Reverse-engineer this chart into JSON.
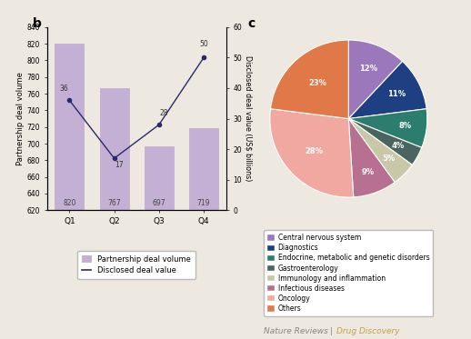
{
  "bar_quarters": [
    "Q1",
    "Q2",
    "Q3",
    "Q4"
  ],
  "bar_volumes": [
    820,
    767,
    697,
    719
  ],
  "line_values": [
    36,
    17,
    28,
    50
  ],
  "bar_color": "#c4b0d5",
  "bar_edgecolor": "#b8a0c8",
  "line_color": "#2a2a6a",
  "ylim_left": [
    620,
    840
  ],
  "ylim_right": [
    0,
    60
  ],
  "yticks_left": [
    620,
    640,
    660,
    680,
    700,
    720,
    740,
    760,
    780,
    800,
    820,
    840
  ],
  "yticks_right": [
    0,
    10,
    20,
    30,
    40,
    50,
    60
  ],
  "ylabel_left": "Partnership deal volume",
  "ylabel_right": "Disclosed deal value (US$ billions)",
  "legend_bar": "Partnership deal volume",
  "legend_line": "Disclosed deal value",
  "panel_b_label": "b",
  "panel_c_label": "c",
  "pie_labels": [
    "12%",
    "11%",
    "8%",
    "4%",
    "5%",
    "9%",
    "28%",
    "23%"
  ],
  "pie_values": [
    12,
    11,
    8,
    4,
    5,
    9,
    28,
    23
  ],
  "pie_colors": [
    "#9b78bb",
    "#1e3f82",
    "#2d7d6e",
    "#4a6560",
    "#c8c8a8",
    "#b87090",
    "#f0a8a0",
    "#e07848"
  ],
  "pie_legend_labels": [
    "Central nervous system",
    "Diagnostics",
    "Endocrine, metabolic and genetic disorders",
    "Gastroenterology",
    "Immunology and inflammation",
    "Infectious diseases",
    "Oncology",
    "Others"
  ],
  "pie_legend_colors": [
    "#9b78bb",
    "#1e3f82",
    "#2d7d6e",
    "#4a6560",
    "#c8c8a8",
    "#b87090",
    "#f0a8a0",
    "#e07848"
  ],
  "bg_color": "#ede8e0",
  "fig_bg": "#ede8e0",
  "signature_color1": "#888880",
  "signature_color2": "#c8a040"
}
